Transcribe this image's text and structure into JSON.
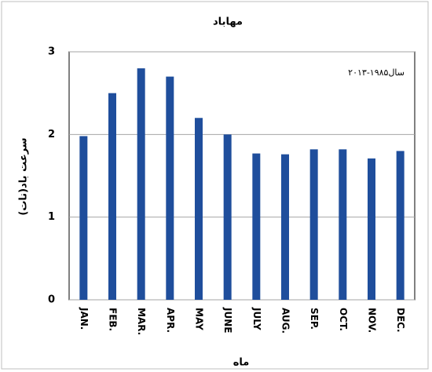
{
  "chart_data": {
    "type": "bar",
    "title": "مهاباد",
    "annotation": "سال۱۹۸۵-۲۰۱۳",
    "y_label": "سرعت باد(نات)",
    "x_label": "ماه",
    "categories": [
      "JAN.",
      "FEB.",
      "MAR.",
      "APR.",
      "MAY",
      "JUNE",
      "JULY",
      "AUG.",
      "SEP.",
      "OCT.",
      "NOV.",
      "DEC."
    ],
    "values": [
      1.98,
      2.5,
      2.8,
      2.7,
      2.2,
      2.0,
      1.77,
      1.76,
      1.82,
      1.82,
      1.71,
      1.8
    ],
    "color": "#1f4e9c",
    "ylim": [
      0,
      3
    ],
    "yticks": [
      0,
      1,
      2,
      3
    ],
    "grid": true
  }
}
